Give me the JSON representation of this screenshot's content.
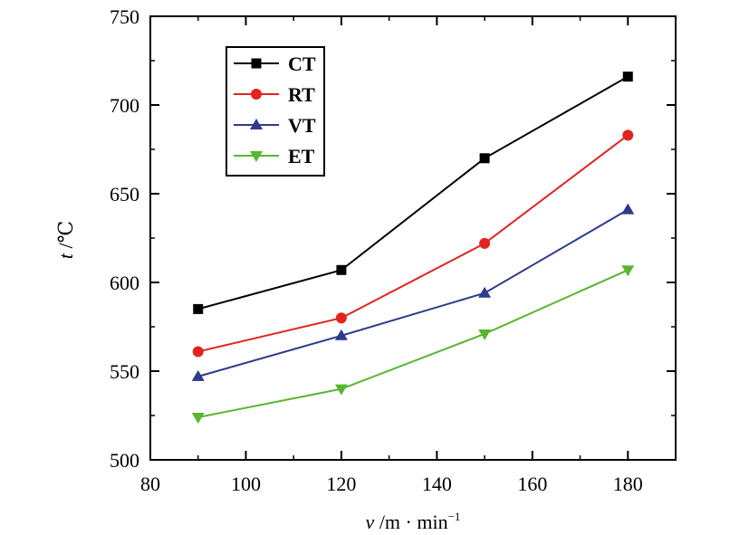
{
  "chart_data": {
    "type": "line",
    "xlabel_var": "v",
    "xlabel_unit": " /m · min",
    "xlabel_sup": "−1",
    "ylabel_var": "t",
    "ylabel_unit": " /℃",
    "xlim": [
      80,
      190
    ],
    "ylim": [
      500,
      750
    ],
    "xticks": [
      80,
      100,
      120,
      140,
      160,
      180
    ],
    "yticks": [
      500,
      550,
      600,
      650,
      700,
      750
    ],
    "x": [
      90,
      120,
      150,
      180
    ],
    "legend_position": "top-left",
    "series": [
      {
        "name": "CT",
        "values": [
          585,
          607,
          670,
          716
        ],
        "color": "#000000",
        "marker": "square"
      },
      {
        "name": "RT",
        "values": [
          561,
          580,
          622,
          683
        ],
        "color": "#e3231e",
        "marker": "circle"
      },
      {
        "name": "VT",
        "values": [
          547,
          570,
          594,
          641
        ],
        "color": "#2e3a8c",
        "marker": "triangle-up"
      },
      {
        "name": "ET",
        "values": [
          524,
          540,
          571,
          607
        ],
        "color": "#5ab52f",
        "marker": "triangle-down"
      }
    ]
  }
}
